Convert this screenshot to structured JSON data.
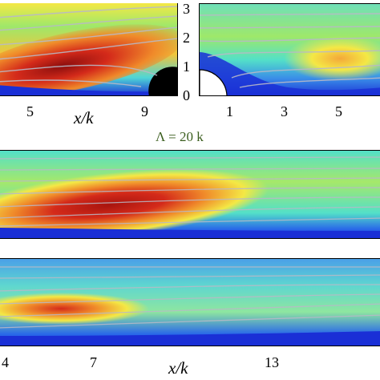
{
  "figure": {
    "lambda_label": "Λ = 20 k",
    "xlabel": "x/k",
    "top_left_xticks": [
      "5",
      "9"
    ],
    "top_right_xticks": [
      "1",
      "3",
      "5"
    ],
    "top_yticks": [
      "0",
      "1",
      "2",
      "3"
    ],
    "bottom_xticks": [
      "4",
      "7",
      "13"
    ]
  },
  "colors": {
    "low": "#1a2fd6",
    "mid": "#53e0c8",
    "high": "#d42a1a",
    "streamline": "#b9b9c7",
    "obstacle": "#000000",
    "annotation": "#3b5e1e"
  }
}
